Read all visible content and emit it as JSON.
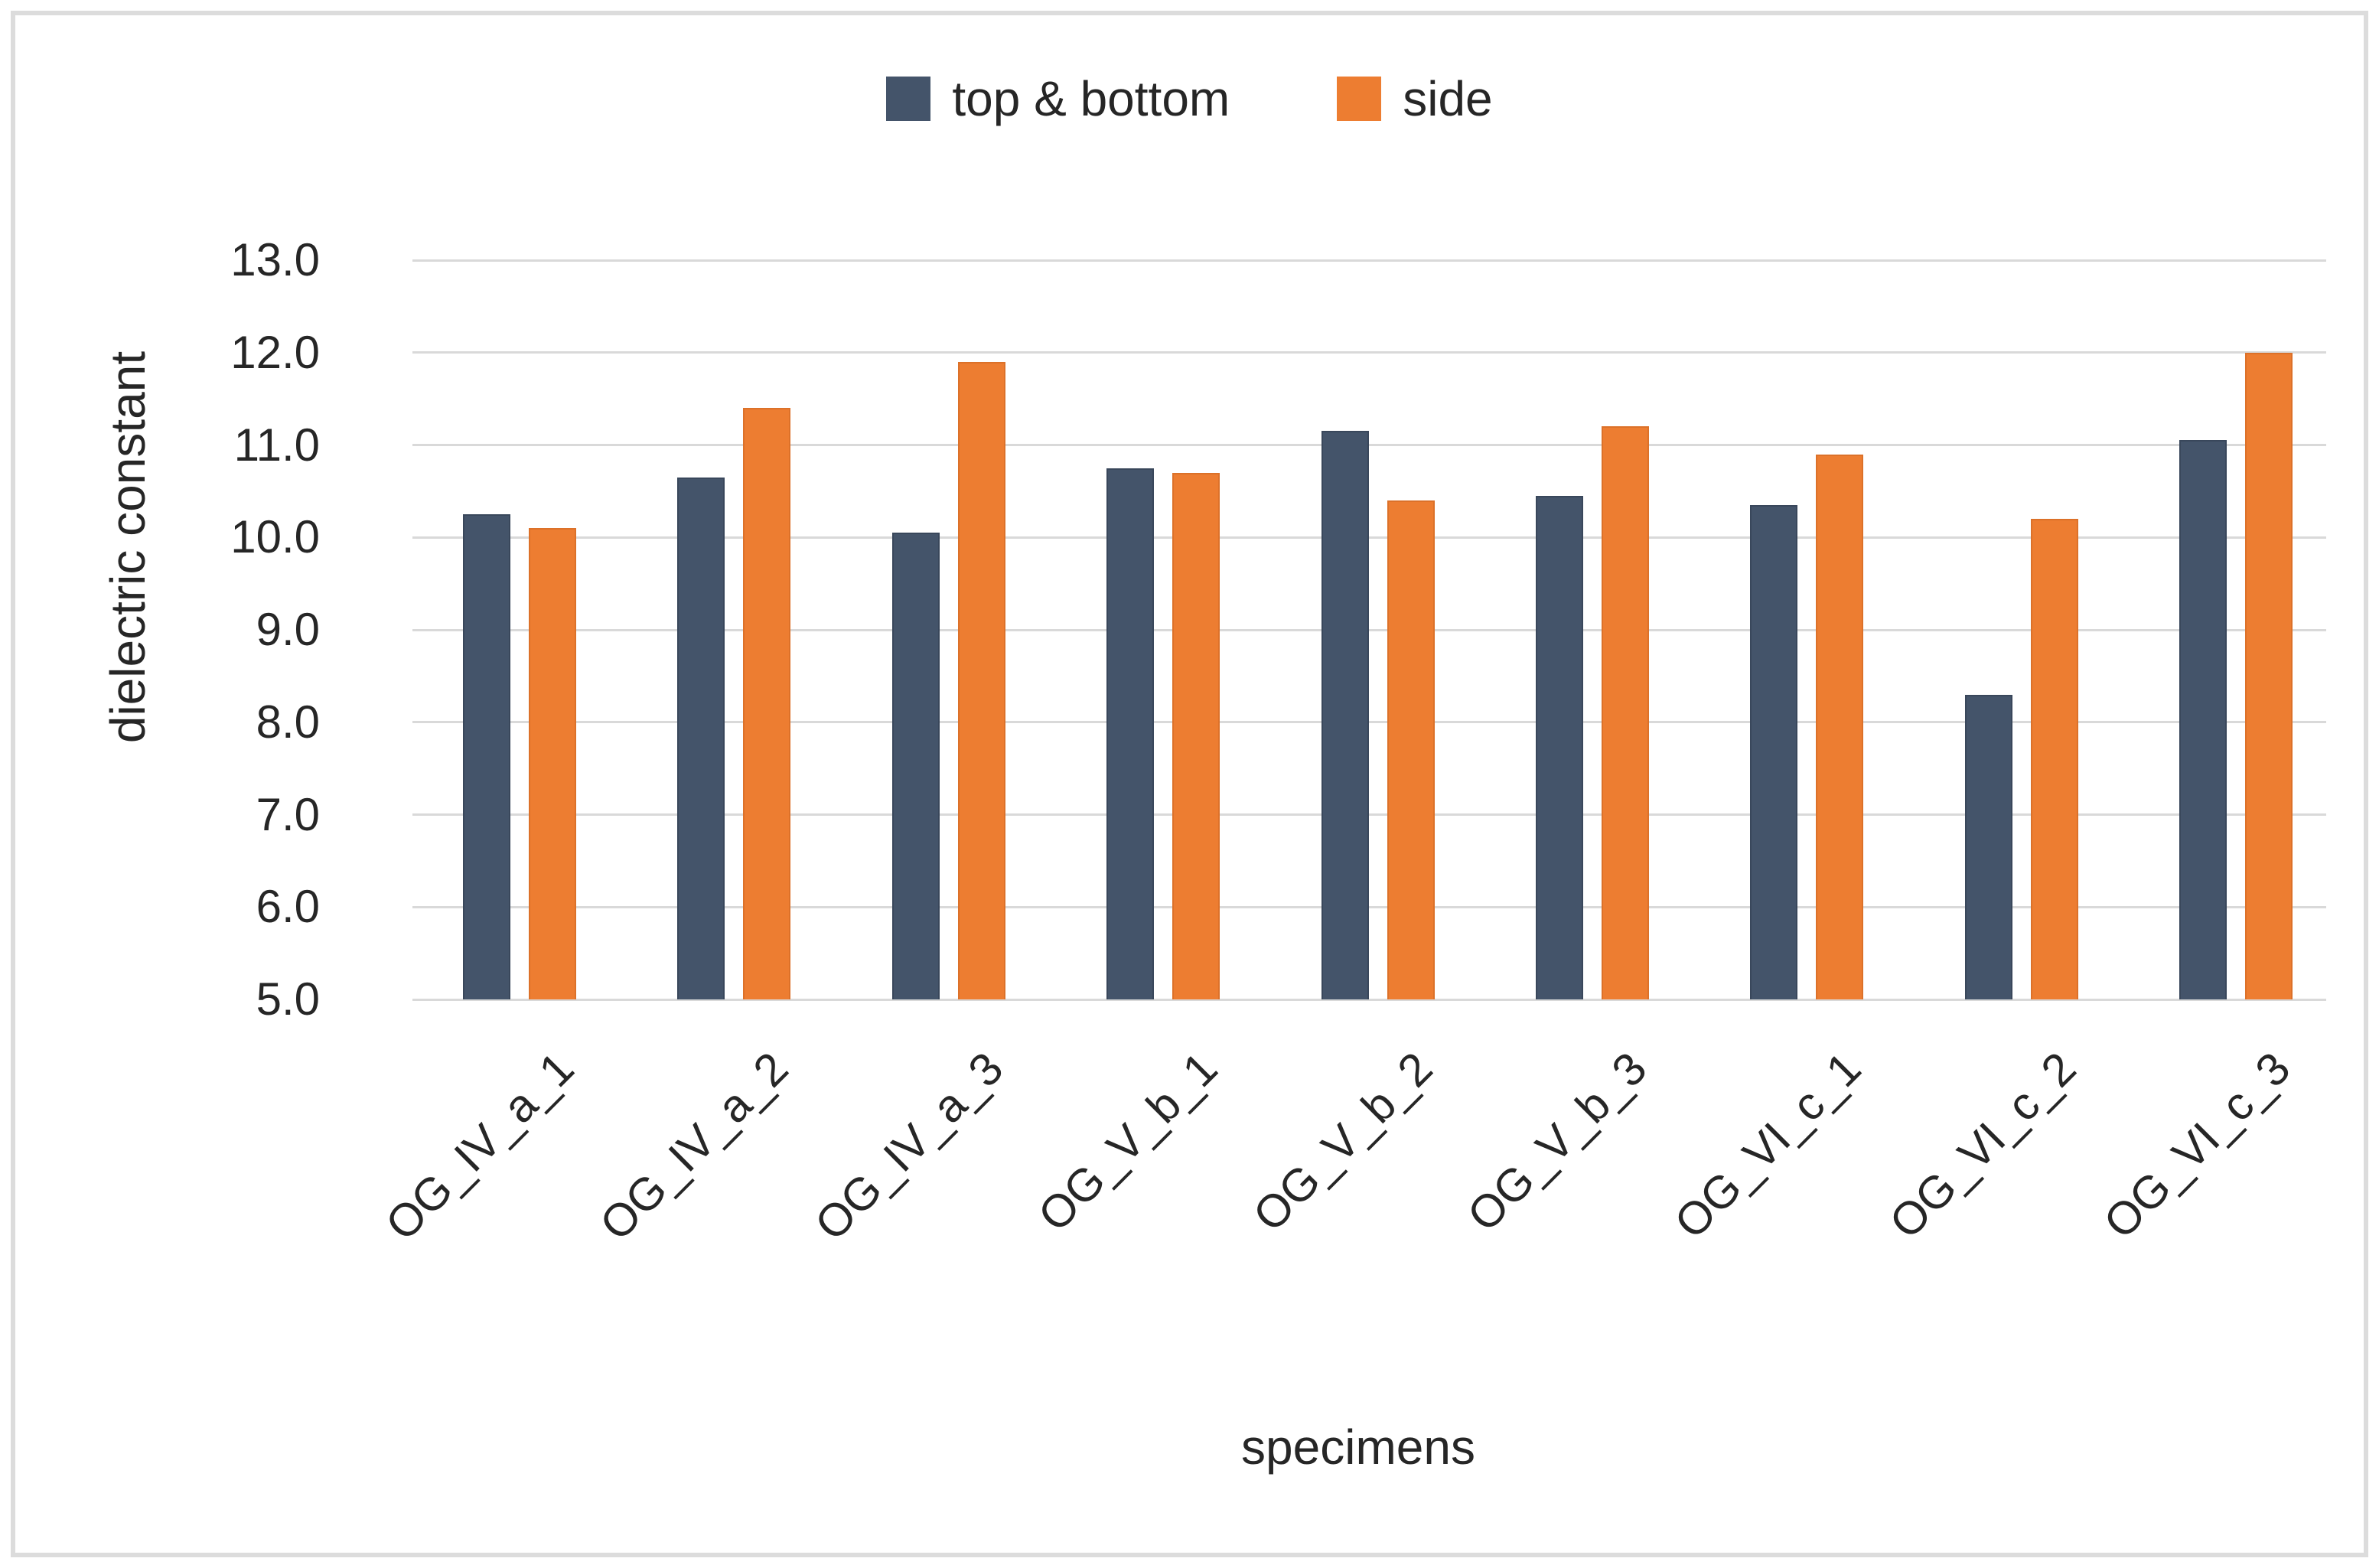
{
  "figure": {
    "background": "#FFFFFF",
    "frame_border_color": "#DCDCDC"
  },
  "chart_data": {
    "type": "bar",
    "title": "",
    "categories": [
      "OG_IV_a_1",
      "OG_IV_a_2",
      "OG_IV_a_3",
      "OG_V_b_1",
      "OG_V_b_2",
      "OG_V_b_3",
      "OG_VI_c_1",
      "OG_VI_c_2",
      "OG_VI_c_3"
    ],
    "series": [
      {
        "name": "top & bottom",
        "color": "#44546A",
        "values": [
          10.25,
          10.65,
          10.05,
          10.75,
          11.15,
          10.45,
          10.35,
          8.3,
          11.05
        ]
      },
      {
        "name": "side",
        "color": "#ED7D31",
        "values": [
          10.1,
          11.4,
          11.9,
          10.7,
          10.4,
          11.2,
          10.9,
          10.2,
          12.0
        ]
      }
    ],
    "xlabel": "specimens",
    "ylabel": "dielectric constant",
    "ylim": [
      5.0,
      13.0
    ],
    "ytick_interval": 1.0,
    "ytick_labels": [
      "13.0",
      "12.0",
      "11.0",
      "10.0",
      "9.0",
      "8.0",
      "7.0",
      "6.0",
      "5.0"
    ],
    "grid": true,
    "gridline_color": "#D9D9D9",
    "legend_position": "top center"
  }
}
